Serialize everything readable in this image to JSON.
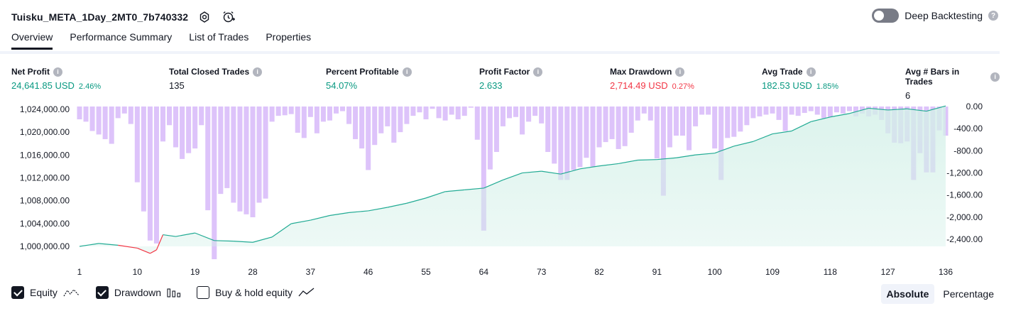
{
  "header": {
    "strategy_name": "Tuisku_META_1Day_2MT0_7b740332"
  },
  "deep_backtesting": {
    "label": "Deep Backtesting",
    "enabled": false
  },
  "tabs": [
    {
      "label": "Overview",
      "active": true
    },
    {
      "label": "Performance Summary",
      "active": false
    },
    {
      "label": "List of Trades",
      "active": false
    },
    {
      "label": "Properties",
      "active": false
    }
  ],
  "metrics": {
    "net_profit": {
      "label": "Net Profit",
      "value": "24,641.85 USD",
      "pct": "2.46%"
    },
    "total_closed_trades": {
      "label": "Total Closed Trades",
      "value": "135"
    },
    "percent_profitable": {
      "label": "Percent Profitable",
      "value": "54.07%"
    },
    "profit_factor": {
      "label": "Profit Factor",
      "value": "2.633"
    },
    "max_drawdown": {
      "label": "Max Drawdown",
      "value": "2,714.49 USD",
      "pct": "0.27%"
    },
    "avg_trade": {
      "label": "Avg Trade",
      "value": "182.53 USD",
      "pct": "1.85%"
    },
    "avg_bars": {
      "label": "Avg # Bars in Trades",
      "value": "6"
    }
  },
  "colors": {
    "profit": "#089981",
    "loss": "#f23645",
    "drawdown_bar": "#d9bcf9",
    "equity_line": "#22ab94",
    "equity_fill": "#d3f0e8"
  },
  "chart_data": {
    "type": "area",
    "x_ticks": [
      "1",
      "10",
      "19",
      "28",
      "37",
      "46",
      "55",
      "64",
      "73",
      "82",
      "91",
      "100",
      "109",
      "118",
      "127",
      "136"
    ],
    "left_axis": {
      "ticks": [
        "1,024,000.00",
        "1,020,000.00",
        "1,016,000.00",
        "1,012,000.00",
        "1,008,000.00",
        "1,004,000.00",
        "1,000,000.00"
      ],
      "range": [
        1000000,
        1024000
      ]
    },
    "right_axis": {
      "ticks": [
        "0.00",
        "-400.00",
        "-800.00",
        "-1,200.00",
        "-1,600.00",
        "-2,000.00",
        "-2,400.00"
      ],
      "range": [
        -2400,
        0
      ]
    },
    "series": [
      {
        "name": "Equity",
        "x": [
          1,
          4,
          7,
          10,
          12,
          13,
          14,
          16,
          19,
          22,
          25,
          28,
          31,
          34,
          37,
          40,
          43,
          46,
          49,
          52,
          55,
          58,
          61,
          64,
          67,
          70,
          73,
          76,
          79,
          82,
          85,
          88,
          91,
          94,
          97,
          100,
          103,
          106,
          109,
          112,
          115,
          118,
          121,
          124,
          127,
          130,
          133,
          136
        ],
        "values": [
          1000000,
          1000500,
          1000200,
          999700,
          998800,
          999400,
          1002000,
          1001700,
          1002300,
          1001000,
          1000900,
          1000700,
          1001600,
          1003900,
          1004500,
          1005300,
          1005800,
          1006100,
          1006700,
          1007400,
          1008300,
          1009400,
          1009700,
          1010000,
          1011400,
          1012600,
          1012900,
          1012400,
          1013300,
          1013800,
          1014200,
          1014800,
          1014900,
          1015200,
          1015700,
          1016000,
          1017200,
          1018000,
          1019300,
          1019800,
          1021400,
          1022200,
          1022800,
          1023700,
          1023400,
          1023600,
          1023200,
          1024100
        ]
      },
      {
        "name": "Drawdown",
        "x": [
          1,
          2,
          3,
          4,
          5,
          6,
          7,
          8,
          9,
          10,
          11,
          12,
          13,
          14,
          15,
          16,
          17,
          18,
          19,
          20,
          21,
          22,
          23,
          24,
          25,
          26,
          27,
          28,
          29,
          30,
          31,
          32,
          33,
          34,
          35,
          36,
          37,
          38,
          39,
          40,
          41,
          42,
          43,
          44,
          45,
          46,
          47,
          48,
          49,
          50,
          51,
          52,
          53,
          54,
          55,
          56,
          57,
          58,
          59,
          60,
          61,
          62,
          63,
          64,
          65,
          66,
          67,
          68,
          69,
          70,
          71,
          72,
          73,
          74,
          75,
          76,
          77,
          78,
          79,
          80,
          81,
          82,
          83,
          84,
          85,
          86,
          87,
          88,
          89,
          90,
          91,
          92,
          93,
          94,
          95,
          96,
          97,
          98,
          99,
          100,
          101,
          102,
          103,
          104,
          105,
          106,
          107,
          108,
          109,
          110,
          111,
          112,
          113,
          114,
          115,
          116,
          117,
          118,
          119,
          120,
          121,
          122,
          123,
          124,
          125,
          126,
          127,
          128,
          129,
          130,
          131,
          132,
          133,
          134,
          135,
          136
        ],
        "values": [
          -220,
          -260,
          -420,
          -480,
          -560,
          -640,
          -200,
          -120,
          -300,
          -1300,
          -1800,
          -2300,
          -2350,
          -600,
          -320,
          -700,
          -900,
          -800,
          -720,
          -320,
          -1780,
          -2620,
          -1500,
          -1400,
          -1650,
          -1800,
          -1850,
          -1900,
          -1650,
          -1580,
          -260,
          -160,
          -150,
          -130,
          -450,
          -540,
          -180,
          -460,
          -260,
          -240,
          -120,
          -80,
          -300,
          -560,
          -720,
          -1090,
          -660,
          -460,
          -340,
          -620,
          -440,
          -300,
          -160,
          -100,
          -220,
          -40,
          -200,
          -240,
          -140,
          -220,
          -160,
          -20,
          -570,
          -2130,
          -1080,
          -780,
          -340,
          -200,
          -180,
          -480,
          -260,
          -160,
          -290,
          -780,
          -980,
          -1260,
          -1260,
          -1090,
          -1040,
          -880,
          -1030,
          -700,
          -610,
          -560,
          -730,
          -680,
          -450,
          -240,
          -120,
          -240,
          -890,
          -1530,
          -700,
          -500,
          -500,
          -750,
          -340,
          -140,
          -140,
          -720,
          -1260,
          -540,
          -520,
          -430,
          -320,
          -200,
          -170,
          -140,
          -120,
          -230,
          -420,
          -140,
          -160,
          -110,
          -80,
          -140,
          -200,
          -180,
          -100,
          -120,
          -80,
          -170,
          -120,
          -170,
          -140,
          -230,
          -460,
          -620,
          -630,
          -600,
          -1260,
          -800,
          -1130,
          -1130,
          -410,
          -500
        ]
      }
    ]
  },
  "legend": [
    {
      "label": "Equity",
      "checked": true,
      "icon": "equity-line-icon"
    },
    {
      "label": "Drawdown",
      "checked": true,
      "icon": "drawdown-bars-icon"
    },
    {
      "label": "Buy & hold equity",
      "checked": false,
      "icon": "buy-hold-line-icon"
    }
  ],
  "view_mode": {
    "absolute": "Absolute",
    "percentage": "Percentage",
    "selected": "Absolute"
  }
}
